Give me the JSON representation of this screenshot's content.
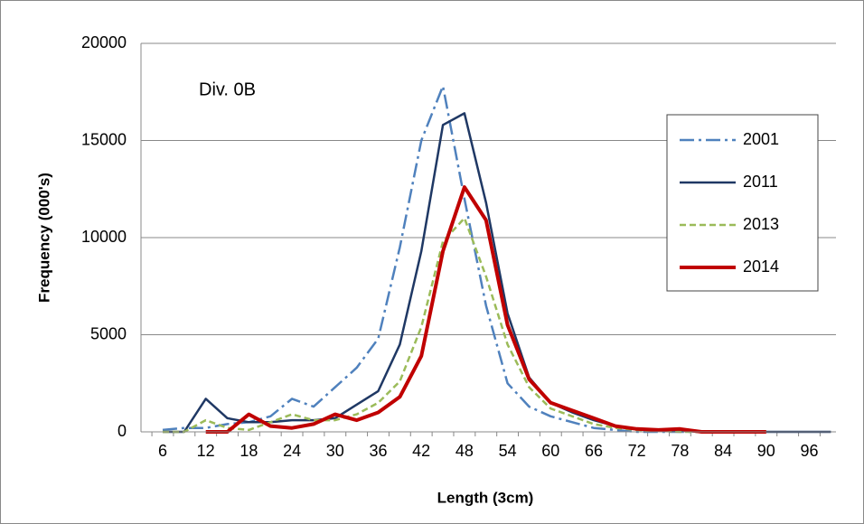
{
  "chart_data": {
    "type": "line",
    "annotation": "Div. 0B",
    "xlabel": "Length (3cm)",
    "ylabel": "Frequency (000's)",
    "categories": [
      6,
      null,
      12,
      null,
      18,
      null,
      24,
      null,
      30,
      null,
      36,
      null,
      42,
      null,
      48,
      null,
      54,
      null,
      60,
      null,
      66,
      null,
      72,
      null,
      78,
      null,
      84,
      null,
      90,
      null,
      96,
      null
    ],
    "ylim": [
      0,
      20000
    ],
    "yticks": [
      0,
      5000,
      10000,
      15000,
      20000
    ],
    "grid": true,
    "legend": "right",
    "series": [
      {
        "name": "2001",
        "color": "#4f81bd",
        "line_style": "dash-dot",
        "values": [
          100,
          200,
          200,
          400,
          500,
          800,
          1700,
          1300,
          2300,
          3300,
          4800,
          9500,
          15000,
          17800,
          12000,
          6500,
          2500,
          1300,
          800,
          500,
          200,
          100,
          0,
          0,
          0,
          0,
          0,
          0,
          0,
          null,
          null,
          null
        ]
      },
      {
        "name": "2011",
        "color": "#1f3864",
        "line_style": "solid",
        "values": [
          0,
          0,
          1700,
          700,
          500,
          500,
          600,
          600,
          700,
          1400,
          2100,
          4500,
          9300,
          15800,
          16400,
          11800,
          6100,
          2800,
          1500,
          1000,
          600,
          300,
          150,
          100,
          50,
          0,
          0,
          0,
          0,
          0,
          0,
          0
        ]
      },
      {
        "name": "2013",
        "color": "#9bbb59",
        "line_style": "dashed",
        "values": [
          0,
          0,
          600,
          200,
          100,
          500,
          900,
          600,
          600,
          900,
          1500,
          2600,
          5400,
          9800,
          11000,
          8000,
          4500,
          2300,
          1200,
          800,
          400,
          200,
          100,
          50,
          0,
          0,
          0,
          0,
          0,
          null,
          null,
          null
        ]
      },
      {
        "name": "2014",
        "color": "#c00000",
        "line_style": "solid-thick",
        "values": [
          null,
          null,
          0,
          0,
          900,
          300,
          200,
          400,
          900,
          600,
          1000,
          1800,
          3900,
          9300,
          12600,
          10900,
          5500,
          2700,
          1500,
          1100,
          700,
          300,
          150,
          100,
          150,
          0,
          0,
          0,
          0,
          null,
          null,
          null
        ]
      }
    ]
  }
}
